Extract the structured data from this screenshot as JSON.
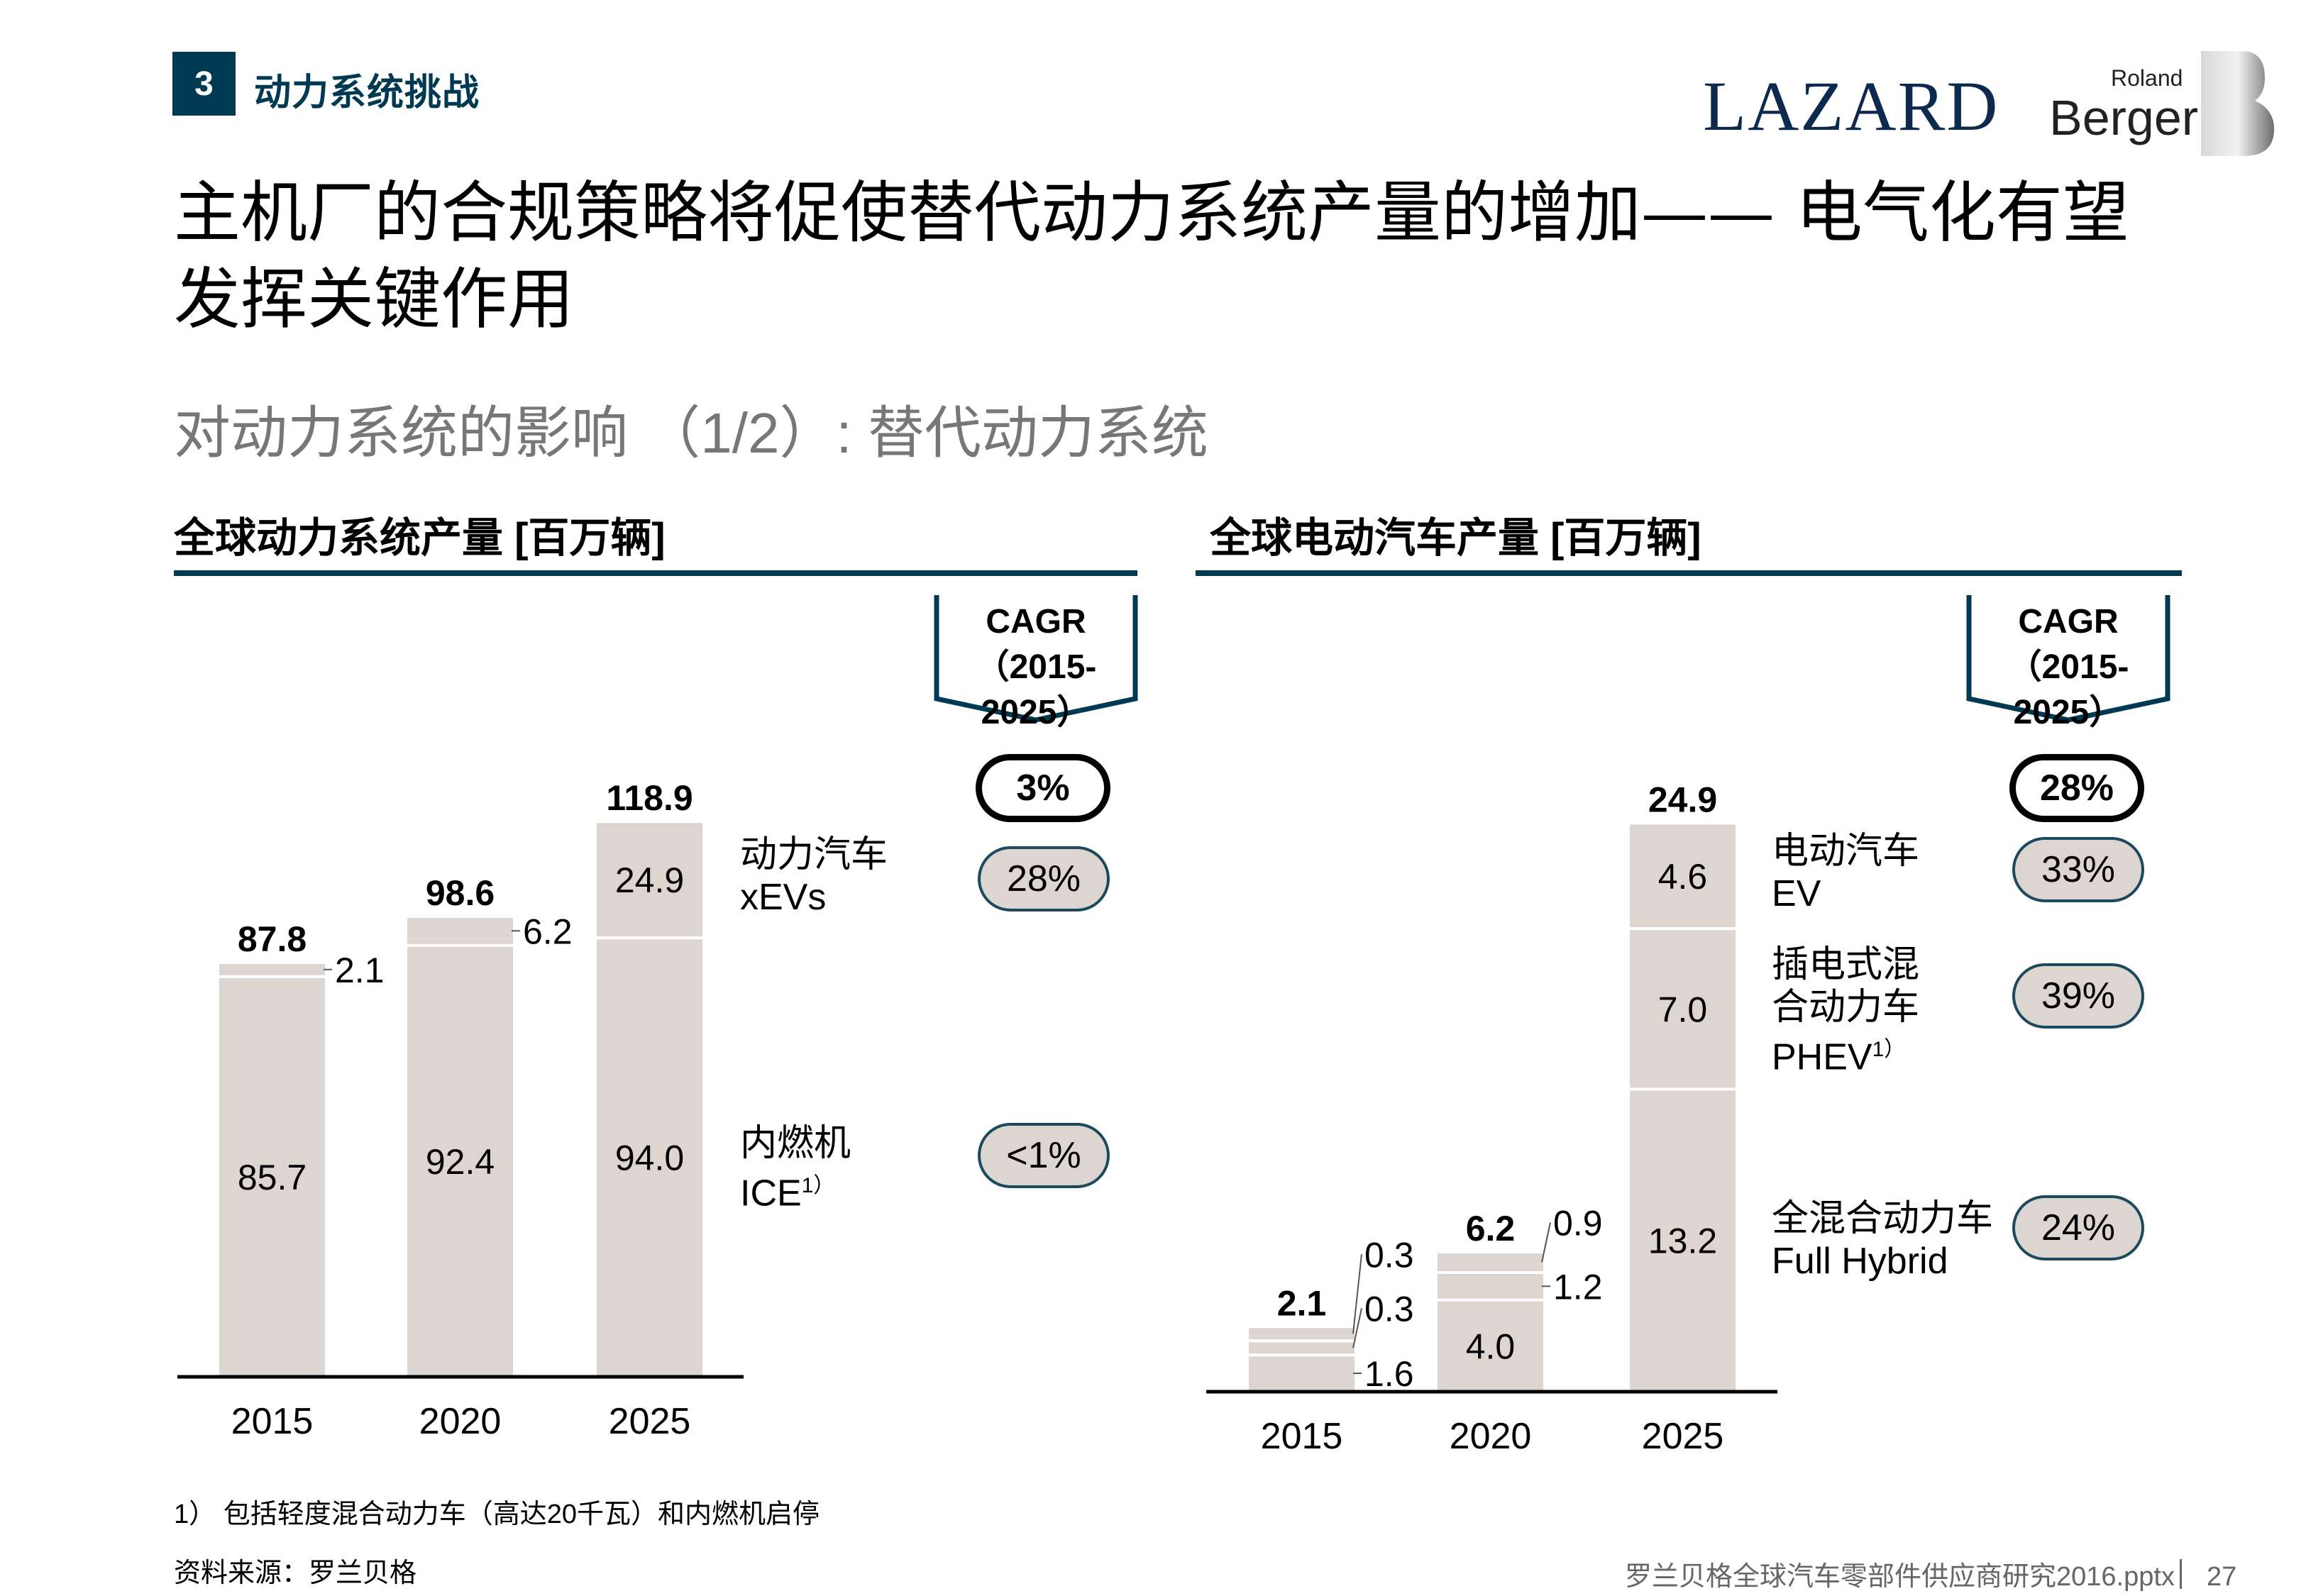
{
  "header": {
    "section_number": "3",
    "section_title": "动力系统挑战",
    "logo_lazard": "LAZARD",
    "logo_roland": "Roland",
    "logo_berger": "Berger"
  },
  "title": {
    "line1": "主机厂的合规策略将促使替代动力系统产量的增加—— 电气化有望",
    "line2": "发挥关键作用"
  },
  "subtitle": "对动力系统的影响 （1/2）: 替代动力系统",
  "colors": {
    "accent": "#003a52",
    "bar": "#ddd5cf",
    "pill_border": "#1b4a5e"
  },
  "cagr_header": {
    "line1": "CAGR",
    "line2": "（2015-2025）"
  },
  "chart_data": [
    {
      "type": "bar",
      "stacked": true,
      "title": "全球动力系统产量 [百万辆]",
      "categories": [
        "2015",
        "2020",
        "2025"
      ],
      "series": [
        {
          "name": "内燃机 ICE",
          "values": [
            85.7,
            92.4,
            94.0
          ]
        },
        {
          "name": "动力汽车 xEVs",
          "values": [
            2.1,
            6.2,
            24.9
          ]
        }
      ],
      "totals": [
        87.8,
        98.6,
        118.9
      ],
      "series_labels": [
        {
          "cn": "内燃机",
          "en": "ICE",
          "sup": "1）",
          "cagr": "<1%"
        },
        {
          "cn": "动力汽车",
          "en": "xEVs",
          "sup": "",
          "cagr": "28%"
        }
      ],
      "total_cagr": "3%",
      "ylim": [
        0,
        120
      ]
    },
    {
      "type": "bar",
      "stacked": true,
      "title": "全球电动汽车产量 [百万辆]",
      "categories": [
        "2015",
        "2020",
        "2025"
      ],
      "series": [
        {
          "name": "全混合动力车 Full Hybrid",
          "values": [
            1.6,
            4.0,
            13.2
          ]
        },
        {
          "name": "插电式混合动力车 PHEV",
          "values": [
            0.3,
            1.2,
            7.0
          ]
        },
        {
          "name": "电动汽车 EV",
          "values": [
            0.3,
            0.9,
            4.6
          ]
        }
      ],
      "totals": [
        2.1,
        6.2,
        24.9
      ],
      "series_labels": [
        {
          "cn": "全混合动力车",
          "en": "Full Hybrid",
          "sup": "",
          "cagr": "24%"
        },
        {
          "cn": "插电式混合动力车",
          "en": "PHEV",
          "sup": "1）",
          "cagr": "39%"
        },
        {
          "cn": "电动汽车",
          "en": "EV",
          "sup": "",
          "cagr": "33%"
        }
      ],
      "total_cagr": "28%",
      "ylim": [
        0,
        25
      ]
    }
  ],
  "footnote": "1） 包括轻度混合动力车（高达20千瓦）和内燃机启停",
  "source": "资料来源：罗兰贝格",
  "footer": {
    "file": "罗兰贝格全球汽车零部件供应商研究2016.pptx",
    "page": "27"
  }
}
